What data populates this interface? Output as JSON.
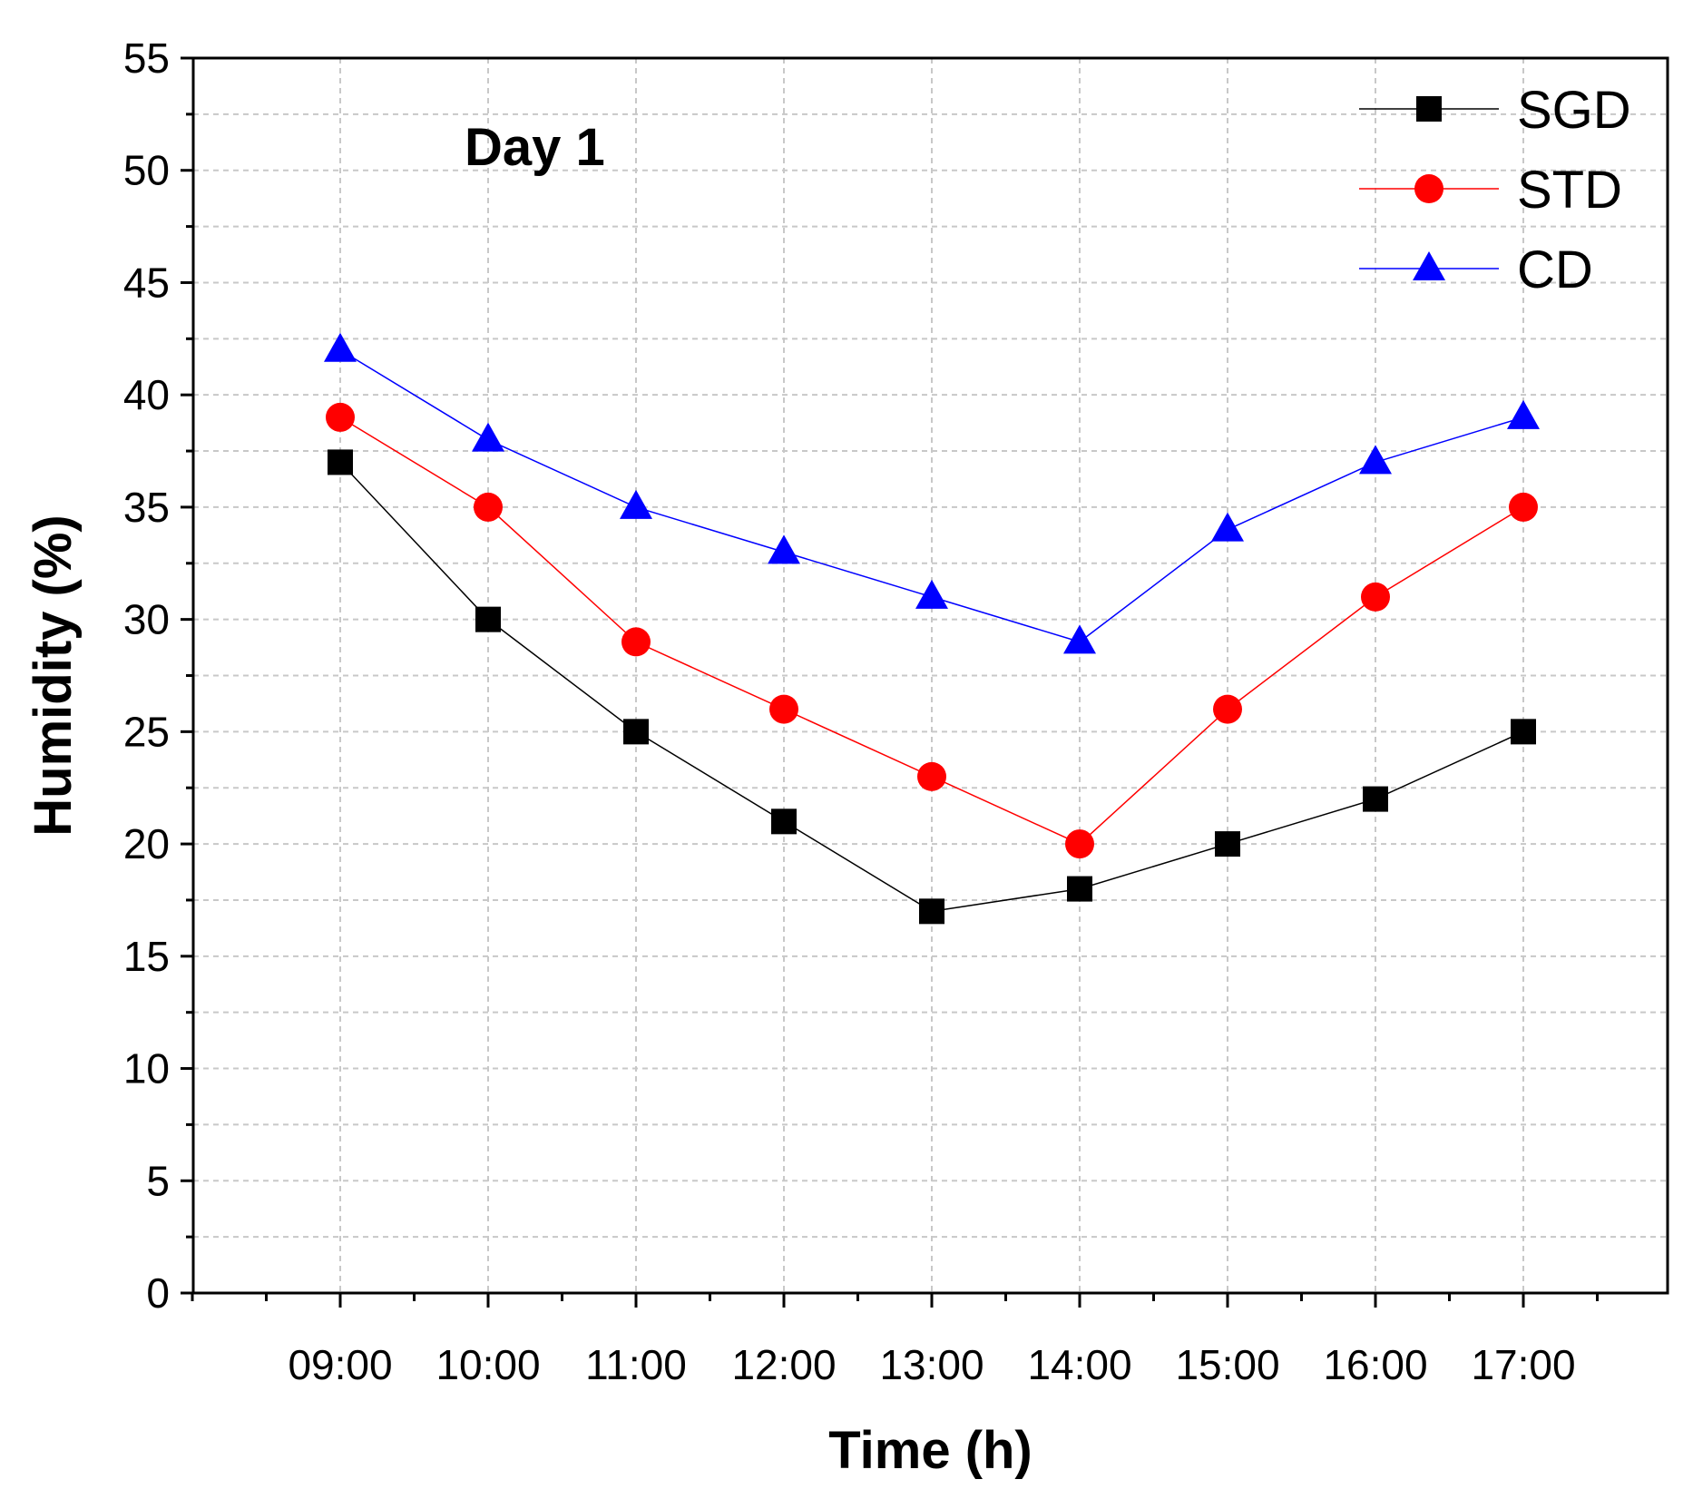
{
  "chart_data": {
    "type": "line",
    "annotation": "Day 1",
    "xlabel": "Time (h)",
    "ylabel": "Humidity (%)",
    "ylim": [
      0,
      55
    ],
    "yticks": [
      "0",
      "5",
      "10",
      "15",
      "20",
      "25",
      "30",
      "35",
      "40",
      "45",
      "50",
      "55"
    ],
    "categories": [
      "09:00",
      "10:00",
      "11:00",
      "12:00",
      "13:00",
      "14:00",
      "15:00",
      "16:00",
      "17:00"
    ],
    "grid": true,
    "legend_position": "top-right",
    "series": [
      {
        "name": "SGD",
        "marker": "square",
        "color": "#000000",
        "values": [
          37,
          30,
          25,
          21,
          17,
          18,
          20,
          22,
          25
        ]
      },
      {
        "name": "STD",
        "marker": "circle",
        "color": "#ff0000",
        "values": [
          39,
          35,
          29,
          26,
          23,
          20,
          26,
          31,
          35
        ]
      },
      {
        "name": "CD",
        "marker": "triangle",
        "color": "#0000ff",
        "values": [
          42,
          38,
          35,
          33,
          31,
          29,
          34,
          37,
          39
        ]
      }
    ]
  }
}
